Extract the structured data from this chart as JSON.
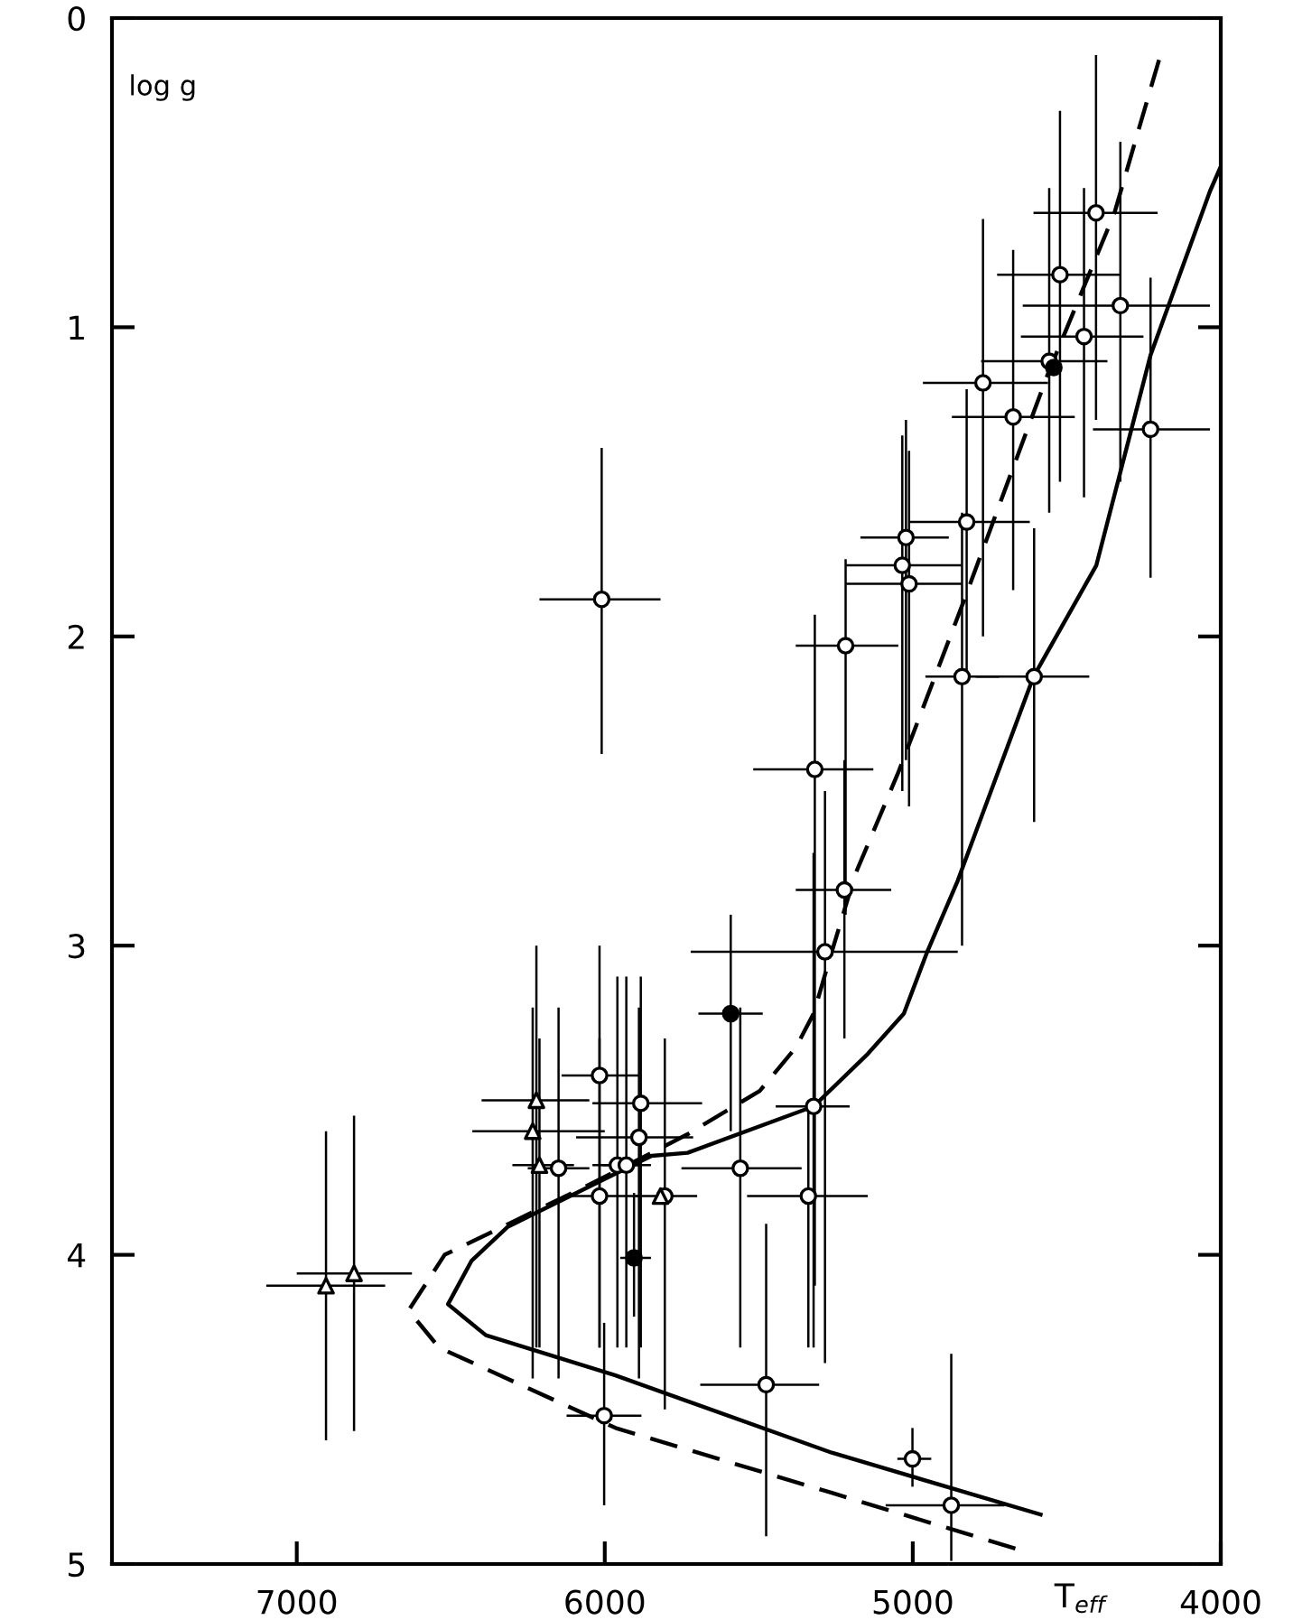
{
  "chart_data": {
    "type": "scatter",
    "xlabel": "T$_{eff}$",
    "ylabel": "log g",
    "xlim": [
      7600,
      4000
    ],
    "ylim": [
      5,
      0
    ],
    "xticks": [
      7000,
      6000,
      5000,
      4000
    ],
    "yticks": [
      0,
      1,
      2,
      3,
      4,
      5
    ],
    "grid": false,
    "legend": false,
    "series": [
      {
        "marker": "circle",
        "color": "#ffffff",
        "x": [
          4405,
          4522,
          4326,
          4444,
          4557,
          4772,
          4674,
          4228,
          4825,
          5022,
          5034,
          5012,
          5218,
          4840,
          4606,
          6010,
          5318,
          5222,
          5285,
          5322,
          6017,
          5883,
          5889,
          5560,
          5959,
          5930,
          6017,
          5339,
          5805,
          6150,
          6002,
          5476,
          5001,
          4875
        ],
        "values": [
          0.63,
          0.83,
          0.93,
          1.03,
          1.11,
          1.18,
          1.29,
          1.33,
          1.63,
          1.68,
          1.77,
          1.83,
          2.03,
          2.13,
          2.13,
          1.88,
          2.43,
          2.82,
          3.02,
          3.52,
          3.42,
          3.51,
          3.62,
          3.72,
          3.71,
          3.71,
          3.81,
          3.81,
          3.81,
          3.72,
          4.52,
          4.42,
          4.66,
          4.81
        ],
        "xerrors": [
          [
            4205,
            4608
          ],
          [
            4327,
            4726
          ],
          [
            4035,
            4643
          ],
          [
            4251,
            4649
          ],
          [
            4368,
            4778
          ],
          [
            4561,
            4967
          ],
          [
            4474,
            4873
          ],
          [
            4035,
            4415
          ],
          [
            4620,
            5012
          ],
          [
            4883,
            5170
          ],
          [
            4842,
            5216
          ],
          [
            4842,
            5216
          ],
          [
            5047,
            5380
          ],
          [
            4719,
            4959
          ],
          [
            4427,
            4795
          ],
          [
            5819,
            6212
          ],
          [
            5128,
            5518
          ],
          [
            5070,
            5380
          ],
          [
            4854,
            5721
          ],
          [
            5205,
            5445
          ],
          [
            5889,
            6140
          ],
          [
            5684,
            6040
          ],
          [
            5713,
            6093
          ],
          [
            5361,
            5751
          ],
          [
            5880,
            6040
          ],
          [
            5850,
            6010
          ],
          [
            5880,
            6130
          ],
          [
            5146,
            5538
          ],
          [
            5700,
            5900
          ],
          [
            6050,
            6250
          ],
          [
            5881,
            6124
          ],
          [
            5304,
            5690
          ],
          [
            4940,
            5050
          ],
          [
            4702,
            5088
          ]
        ],
        "errors": [
          [
            0.12,
            1.3
          ],
          [
            0.3,
            1.5
          ],
          [
            0.4,
            1.5
          ],
          [
            0.55,
            1.55
          ],
          [
            0.55,
            1.6
          ],
          [
            0.65,
            2.0
          ],
          [
            0.75,
            1.85
          ],
          [
            0.84,
            1.81
          ],
          [
            1.2,
            2.15
          ],
          [
            1.3,
            2.4
          ],
          [
            1.35,
            2.5
          ],
          [
            1.4,
            2.55
          ],
          [
            1.75,
            2.9
          ],
          [
            1.6,
            3.0
          ],
          [
            1.65,
            2.6
          ],
          [
            1.39,
            2.38
          ],
          [
            1.93,
            4.1
          ],
          [
            2.4,
            3.3
          ],
          [
            2.5,
            4.35
          ],
          [
            2.7,
            4.3
          ],
          [
            3.0,
            4.3
          ],
          [
            3.1,
            4.3
          ],
          [
            3.2,
            4.4
          ],
          [
            3.2,
            4.3
          ],
          [
            3.1,
            4.3
          ],
          [
            3.1,
            4.3
          ],
          [
            3.3,
            4.3
          ],
          [
            3.5,
            4.3
          ],
          [
            3.3,
            4.5
          ],
          [
            3.2,
            4.4
          ],
          [
            4.22,
            4.81
          ],
          [
            3.9,
            4.91
          ],
          [
            4.56,
            4.75
          ],
          [
            4.32,
            4.99
          ]
        ]
      },
      {
        "marker": "triangle",
        "color": "#ffffff",
        "x": [
          6222,
          6234,
          6212,
          5819,
          6905,
          6814
        ],
        "values": [
          3.5,
          3.6,
          3.71,
          3.81,
          4.1,
          4.06
        ],
        "xerrors": [
          [
            6050,
            6400
          ],
          [
            6000,
            6430
          ],
          [
            6100,
            6300
          ],
          null,
          [
            6713,
            7099
          ],
          [
            6626,
            7000
          ]
        ],
        "errors": [
          [
            3.0,
            4.3
          ],
          [
            3.2,
            4.4
          ],
          [
            3.3,
            4.3
          ],
          null,
          [
            3.6,
            4.6
          ],
          [
            3.55,
            4.57
          ]
        ]
      },
      {
        "marker": "circle",
        "color": "#000000",
        "x": [
          5591,
          5905,
          4542
        ],
        "values": [
          3.22,
          4.01,
          1.13
        ],
        "xerrors": [
          [
            5487,
            5696
          ],
          [
            5850,
            5950
          ],
          null
        ],
        "errors": [
          [
            2.9,
            3.6
          ],
          [
            3.8,
            4.2
          ],
          null
        ]
      },
      {
        "type": "line",
        "line_style": "solid",
        "color": "#000000",
        "x": [
          4585,
          5263,
          5965,
          6386,
          6509,
          6433,
          6316,
          5848,
          5731,
          5322,
          5146,
          5029,
          4953,
          4854,
          4608,
          4404,
          4228,
          4035,
          4000
        ],
        "values": [
          4.84,
          4.64,
          4.39,
          4.26,
          4.16,
          4.02,
          3.91,
          3.68,
          3.67,
          3.52,
          3.35,
          3.22,
          3.02,
          2.79,
          2.13,
          1.77,
          1.09,
          0.56,
          0.48
        ]
      },
      {
        "type": "line",
        "line_style": "dashed",
        "color": "#000000",
        "x": [
          4667,
          5263,
          5965,
          6538,
          6637,
          6520,
          6064,
          5848,
          5731,
          5497,
          5380,
          5322,
          5263,
          5187,
          5047,
          4836,
          4561,
          4345,
          4281,
          4193
        ],
        "values": [
          4.95,
          4.77,
          4.56,
          4.3,
          4.18,
          4.0,
          3.78,
          3.67,
          3.61,
          3.47,
          3.33,
          3.22,
          3.02,
          2.77,
          2.44,
          1.89,
          1.15,
          0.63,
          0.41,
          0.11
        ]
      }
    ]
  }
}
